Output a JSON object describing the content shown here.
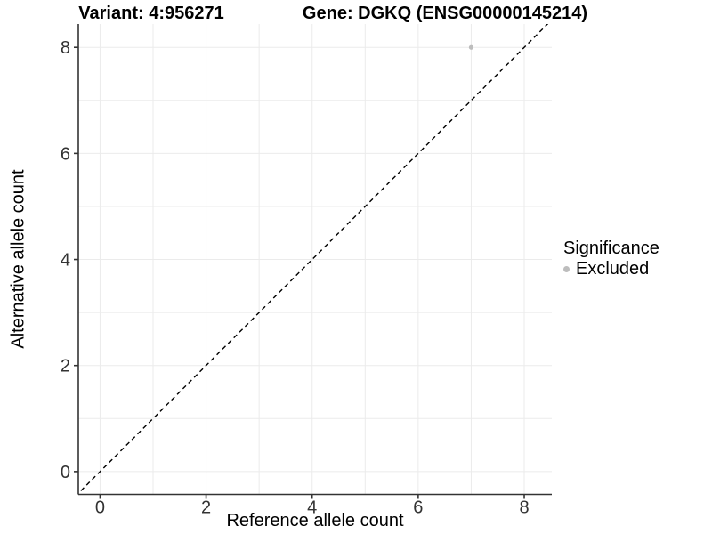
{
  "header": {
    "variant_title": "Variant: 4:956271",
    "gene_title": "Gene: DGKQ (ENSG00000145214)"
  },
  "chart_data": {
    "type": "scatter",
    "title": "Variant: 4:956271   Gene: DGKQ (ENSG00000145214)",
    "xlabel": "Reference allele count",
    "ylabel": "Alternative allele count",
    "xlim": [
      -0.41,
      8.52
    ],
    "ylim": [
      -0.43,
      8.44
    ],
    "x_ticks": [
      0,
      2,
      4,
      6,
      8
    ],
    "y_ticks": [
      0,
      2,
      4,
      6,
      8
    ],
    "grid": {
      "show": true,
      "interval": 1,
      "color": "#ebebeb"
    },
    "axis_color": "#333333",
    "tick_label_color": "#333333",
    "point_radius": 2.6,
    "series": [
      {
        "name": "Excluded",
        "color": "#bdbdbd",
        "points": [
          {
            "x": 7,
            "y": 8
          }
        ]
      }
    ],
    "reference_line": {
      "type": "identity",
      "slope": 1,
      "intercept": 0,
      "style": "dashed",
      "color": "#000000"
    },
    "legend": {
      "position": "right",
      "title": "Significance",
      "entries": [
        {
          "label": "Excluded",
          "color": "#bdbdbd"
        }
      ]
    }
  }
}
